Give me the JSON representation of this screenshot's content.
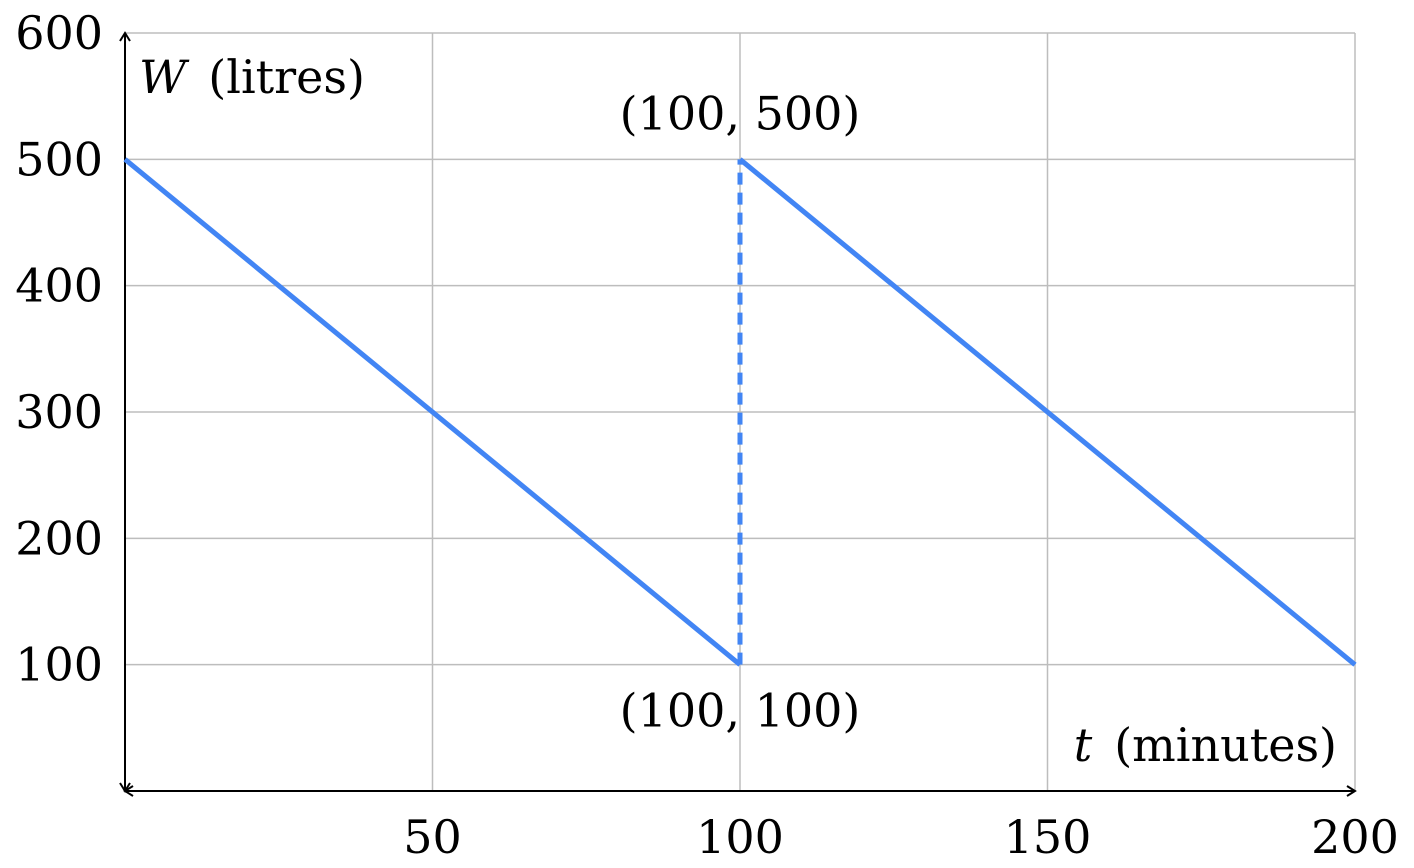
{
  "chart_data": {
    "type": "line",
    "xlabel": "t (minutes)",
    "xlabel_var": "t",
    "xlabel_unit": "(minutes)",
    "ylabel": "W (litres)",
    "ylabel_var": "W",
    "ylabel_unit": "(litres)",
    "xlim": [
      0,
      200
    ],
    "ylim": [
      0,
      600
    ],
    "x_ticks": [
      50,
      100,
      150,
      200
    ],
    "x_tick_labels": [
      "50",
      "100",
      "150",
      "200"
    ],
    "y_ticks": [
      100,
      200,
      300,
      400,
      500,
      600
    ],
    "y_tick_labels": [
      "100",
      "200",
      "300",
      "400",
      "500",
      "600"
    ],
    "grid": true,
    "line_color": "#4285F4",
    "series": [
      {
        "segments": [
          {
            "style": "solid",
            "points": [
              [
                0,
                500
              ],
              [
                100,
                100
              ]
            ]
          },
          {
            "style": "dashed",
            "points": [
              [
                100,
                100
              ],
              [
                100,
                500
              ]
            ]
          },
          {
            "style": "solid",
            "points": [
              [
                100,
                500
              ],
              [
                200,
                100
              ]
            ]
          }
        ]
      }
    ],
    "annotations": [
      {
        "text": "(100, 500)",
        "x": 100,
        "y": 500,
        "position": "above"
      },
      {
        "text": "(100, 100)",
        "x": 100,
        "y": 100,
        "position": "below"
      }
    ]
  }
}
